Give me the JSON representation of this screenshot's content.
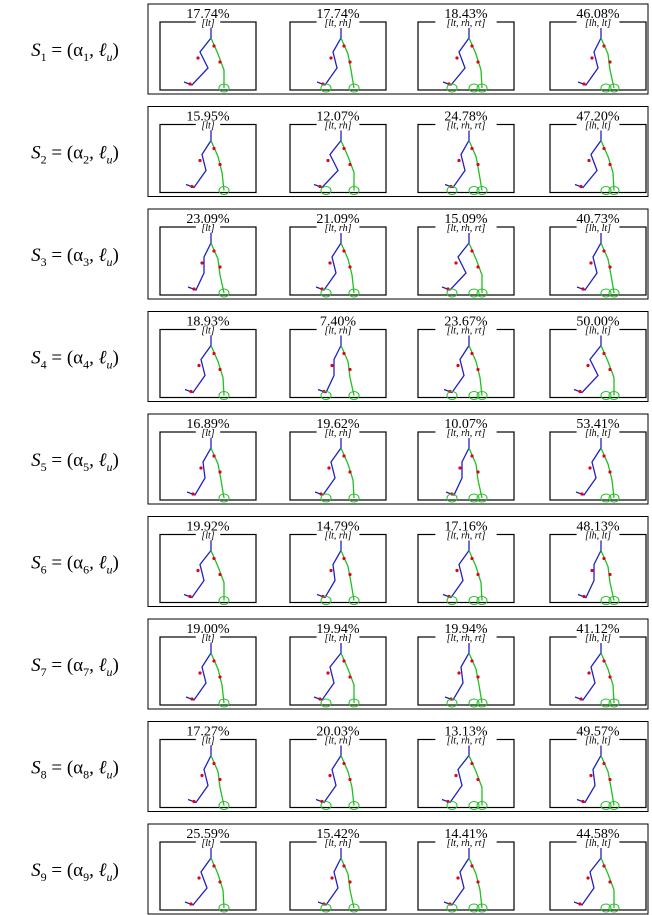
{
  "rows": [
    {
      "label": [
        "S",
        "1",
        " = (α",
        "1",
        ", ℓ",
        "u",
        ")"
      ],
      "cells": [
        {
          "percent": "17.74%",
          "tag": "[lt]"
        },
        {
          "percent": "17.74%",
          "tag": "[lt, rh]"
        },
        {
          "percent": "18.43%",
          "tag": "[lt, rh, rt]"
        },
        {
          "percent": "46.08%",
          "tag": "[lh, lt]"
        }
      ]
    },
    {
      "label": [
        "S",
        "2",
        " = (α",
        "2",
        ", ℓ",
        "u",
        ")"
      ],
      "cells": [
        {
          "percent": "15.95%",
          "tag": "[lt]"
        },
        {
          "percent": "12.07%",
          "tag": "[lt, rh]"
        },
        {
          "percent": "24.78%",
          "tag": "[lt, rh, rt]"
        },
        {
          "percent": "47.20%",
          "tag": "[lh, lt]"
        }
      ]
    },
    {
      "label": [
        "S",
        "3",
        " = (α",
        "3",
        ", ℓ",
        "u",
        ")"
      ],
      "cells": [
        {
          "percent": "23.09%",
          "tag": "[lt]"
        },
        {
          "percent": "21.09%",
          "tag": "[lt, rh]"
        },
        {
          "percent": "15.09%",
          "tag": "[lt, rh, rt]"
        },
        {
          "percent": "40.73%",
          "tag": "[lh, lt]"
        }
      ]
    },
    {
      "label": [
        "S",
        "4",
        " = (α",
        "4",
        ", ℓ",
        "u",
        ")"
      ],
      "cells": [
        {
          "percent": "18.93%",
          "tag": "[lt]"
        },
        {
          "percent": "7.40%",
          "tag": "[lt, rh]"
        },
        {
          "percent": "23.67%",
          "tag": "[lt, rh, rt]"
        },
        {
          "percent": "50.00%",
          "tag": "[lh, lt]"
        }
      ]
    },
    {
      "label": [
        "S",
        "5",
        " = (α",
        "5",
        ", ℓ",
        "u",
        ")"
      ],
      "cells": [
        {
          "percent": "16.89%",
          "tag": "[lt]"
        },
        {
          "percent": "19.62%",
          "tag": "[lt, rh]"
        },
        {
          "percent": "10.07%",
          "tag": "[lt, rh, rt]"
        },
        {
          "percent": "53.41%",
          "tag": "[lh, lt]"
        }
      ]
    },
    {
      "label": [
        "S",
        "6",
        " = (α",
        "6",
        ", ℓ",
        "u",
        ")"
      ],
      "cells": [
        {
          "percent": "19.92%",
          "tag": "[lt]"
        },
        {
          "percent": "14.79%",
          "tag": "[lt, rh]"
        },
        {
          "percent": "17.16%",
          "tag": "[lt, rh, rt]"
        },
        {
          "percent": "48.13%",
          "tag": "[lh, lt]"
        }
      ]
    },
    {
      "label": [
        "S",
        "7",
        " = (α",
        "7",
        ", ℓ",
        "u",
        ")"
      ],
      "cells": [
        {
          "percent": "19.00%",
          "tag": "[lt]"
        },
        {
          "percent": "19.94%",
          "tag": "[lt, rh]"
        },
        {
          "percent": "19.94%",
          "tag": "[lt, rh, rt]"
        },
        {
          "percent": "41.12%",
          "tag": "[lh, lt]"
        }
      ]
    },
    {
      "label": [
        "S",
        "8",
        " = (α",
        "8",
        ", ℓ",
        "u",
        ")"
      ],
      "cells": [
        {
          "percent": "17.27%",
          "tag": "[lt]"
        },
        {
          "percent": "20.03%",
          "tag": "[lt, rh]"
        },
        {
          "percent": "13.13%",
          "tag": "[lt, rh, rt]"
        },
        {
          "percent": "49.57%",
          "tag": "[lh, lt]"
        }
      ]
    },
    {
      "label": [
        "S",
        "9",
        " = (α",
        "9",
        ", ℓ",
        "u",
        ")"
      ],
      "cells": [
        {
          "percent": "25.59%",
          "tag": "[lt]"
        },
        {
          "percent": "15.42%",
          "tag": "[lt, rh]"
        },
        {
          "percent": "14.41%",
          "tag": "[lt, rh, rt]"
        },
        {
          "percent": "44.58%",
          "tag": "[lh, lt]"
        }
      ]
    }
  ]
}
